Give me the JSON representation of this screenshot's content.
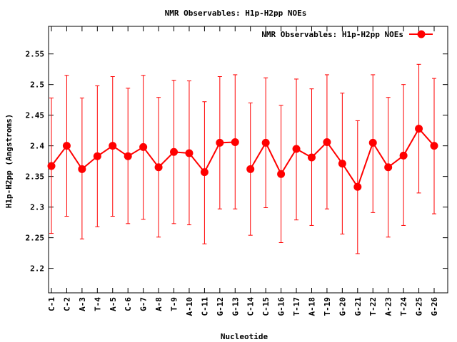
{
  "chart_data": {
    "type": "line",
    "title": "NMR Observables: H1p-H2pp NOEs",
    "xlabel": "Nucleotide",
    "ylabel": "H1p-H2pp (Angstroms)",
    "ylim": [
      2.16,
      2.595
    ],
    "yticks": [
      2.2,
      2.25,
      2.3,
      2.35,
      2.4,
      2.45,
      2.5,
      2.55
    ],
    "ytick_labels": [
      "2.2",
      "2.25",
      "2.3",
      "2.35",
      "2.4",
      "2.45",
      "2.5",
      "2.55"
    ],
    "legend_position": "top-right",
    "grid": false,
    "color": "#ff0000",
    "categories": [
      "C-1",
      "C-2",
      "A-3",
      "T-4",
      "A-5",
      "C-6",
      "G-7",
      "A-8",
      "T-9",
      "A-10",
      "C-11",
      "G-12",
      "G-13",
      "C-14",
      "C-15",
      "G-16",
      "T-17",
      "A-18",
      "T-19",
      "G-20",
      "G-21",
      "T-22",
      "A-23",
      "T-24",
      "G-25",
      "G-26"
    ],
    "series": [
      {
        "name": "NMR Observables: H1p-H2pp NOEs",
        "segments": [
          [
            0,
            12
          ],
          [
            13,
            25
          ]
        ],
        "values": [
          2.367,
          2.4,
          2.362,
          2.383,
          2.4,
          2.383,
          2.398,
          2.365,
          2.39,
          2.388,
          2.357,
          2.405,
          2.406,
          2.362,
          2.405,
          2.354,
          2.395,
          2.381,
          2.406,
          2.371,
          2.333,
          2.405,
          2.365,
          2.384,
          2.428,
          2.4
        ],
        "err_low": [
          2.257,
          2.285,
          2.248,
          2.268,
          2.285,
          2.273,
          2.28,
          2.251,
          2.273,
          2.271,
          2.24,
          2.297,
          2.297,
          2.254,
          2.299,
          2.242,
          2.279,
          2.27,
          2.297,
          2.256,
          2.224,
          2.291,
          2.251,
          2.27,
          2.323,
          2.289
        ],
        "err_high": [
          2.478,
          2.515,
          2.478,
          2.498,
          2.513,
          2.494,
          2.515,
          2.479,
          2.507,
          2.506,
          2.472,
          2.513,
          2.516,
          2.47,
          2.511,
          2.466,
          2.509,
          2.493,
          2.516,
          2.486,
          2.441,
          2.516,
          2.479,
          2.5,
          2.533,
          2.51
        ]
      }
    ]
  }
}
